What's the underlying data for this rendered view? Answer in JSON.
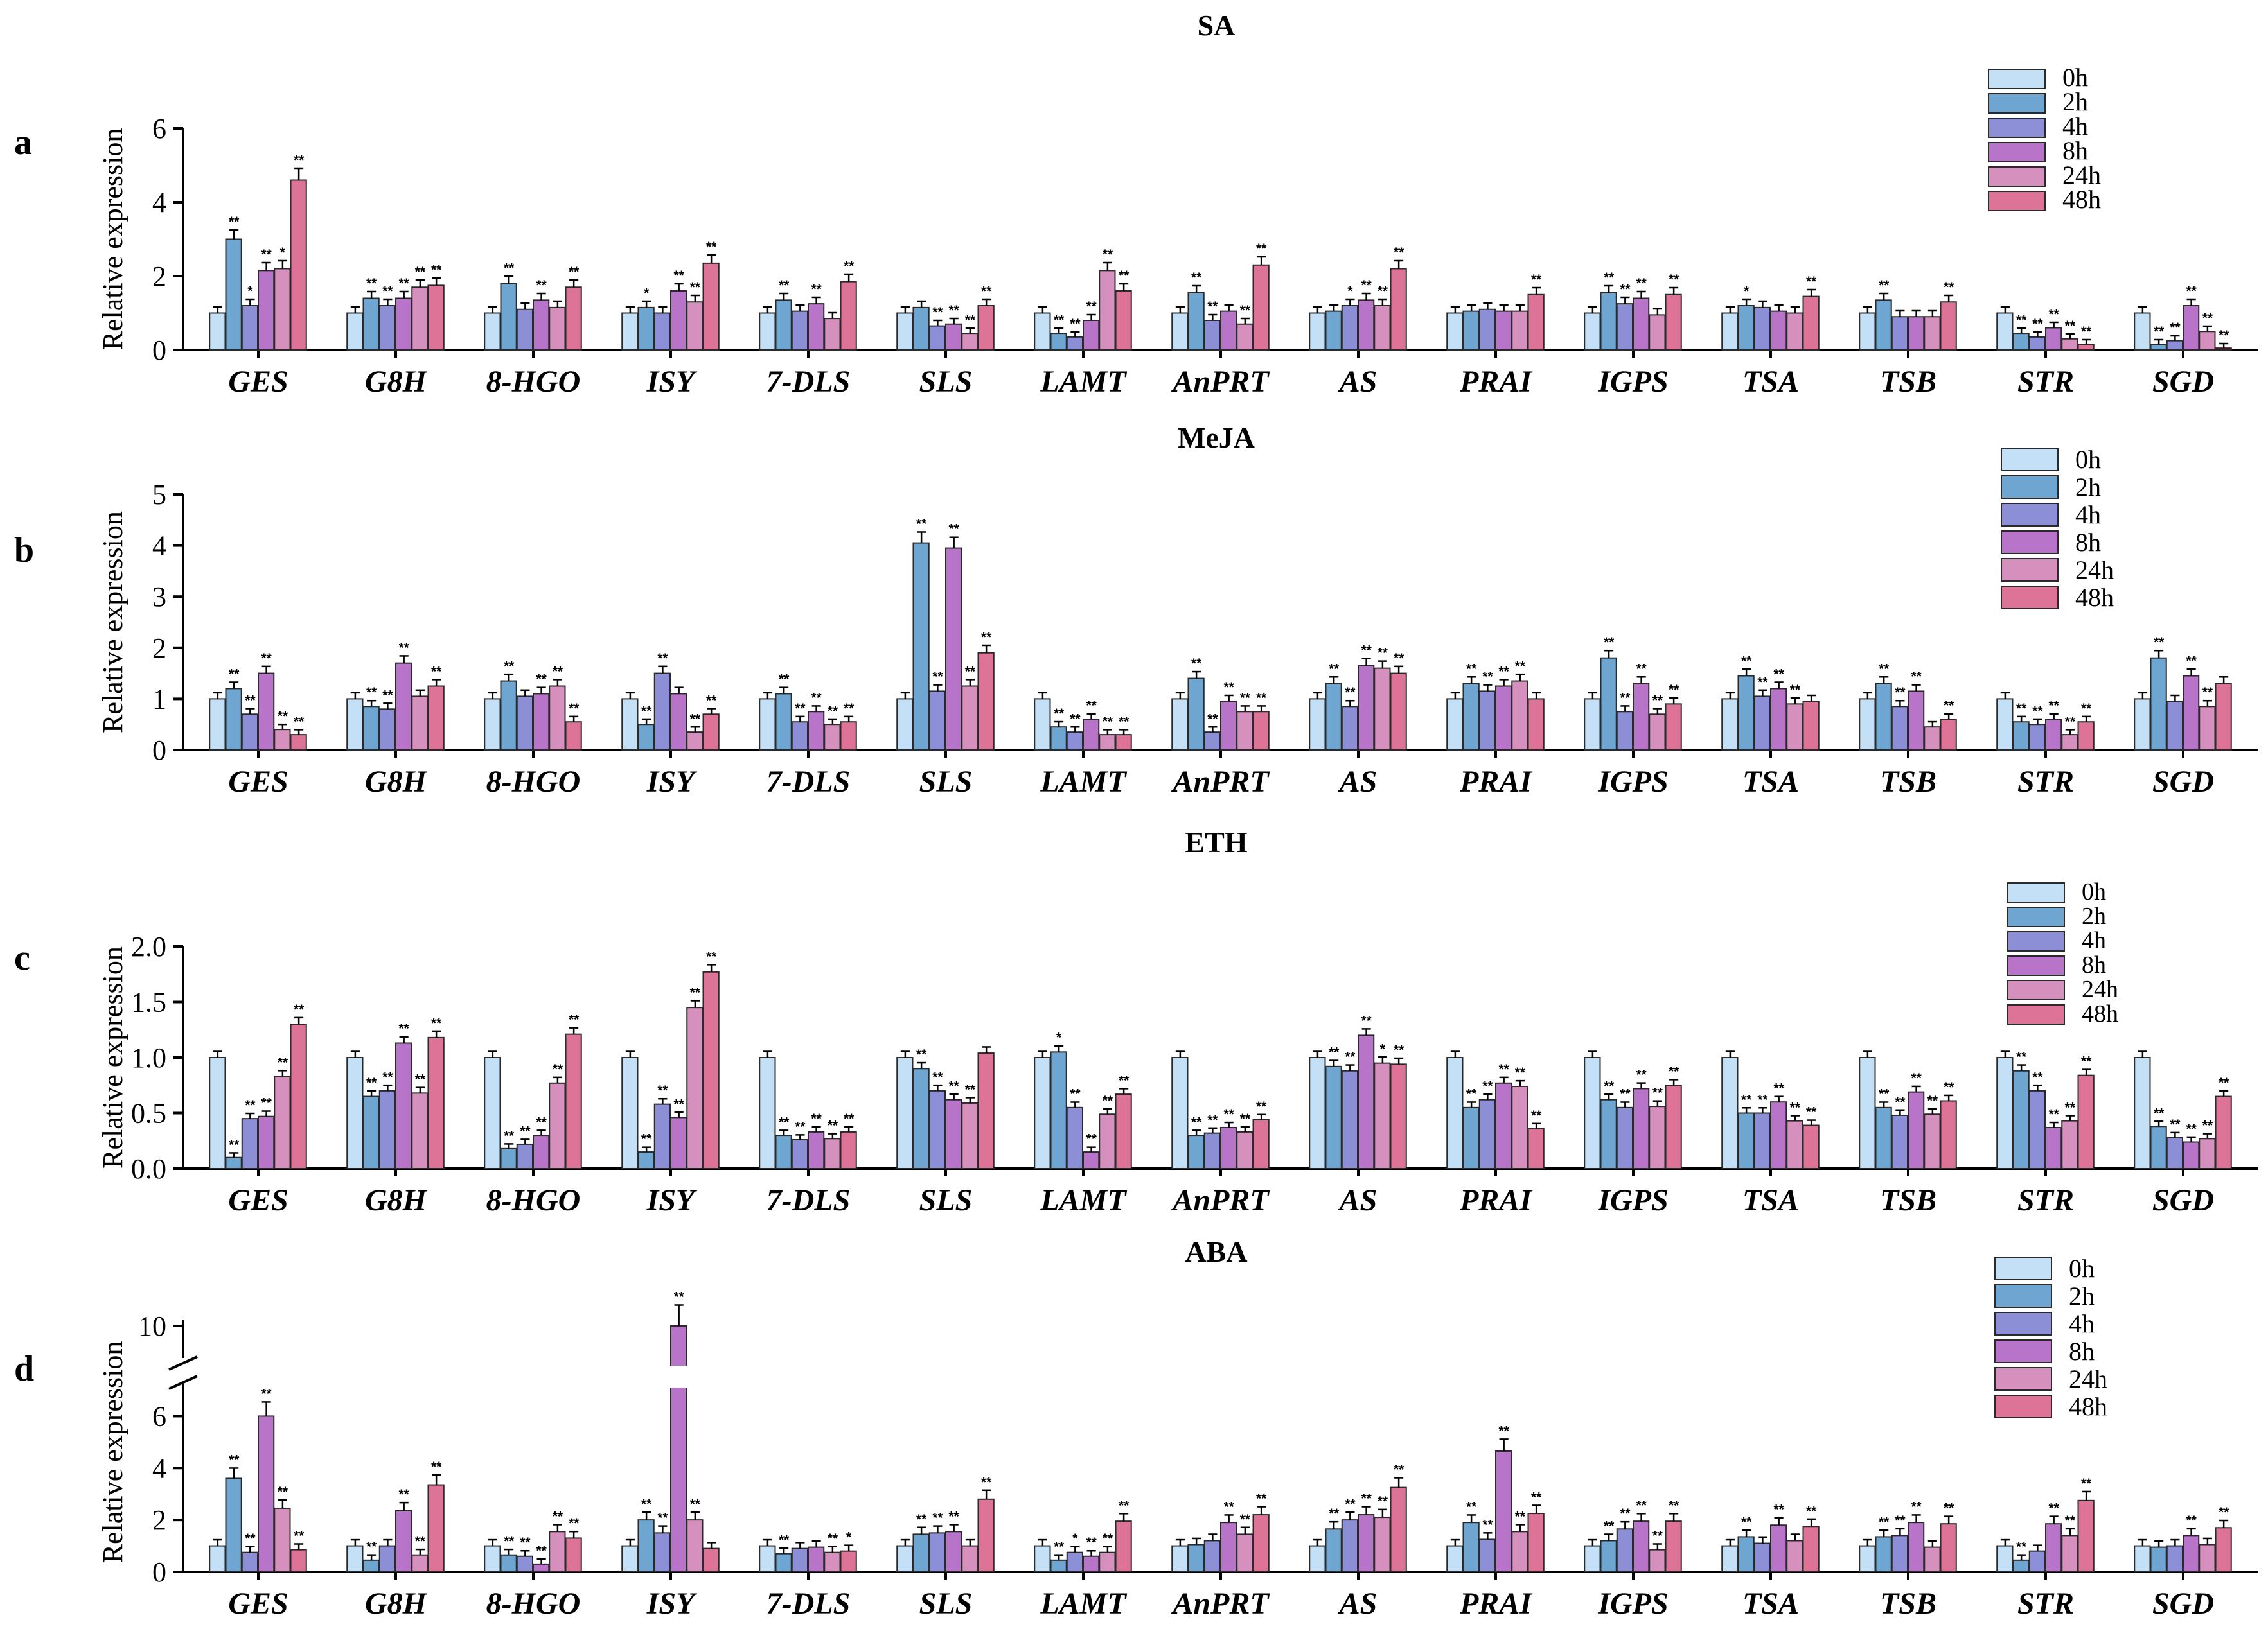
{
  "colors": [
    "#c3e0f6",
    "#6ea6d1",
    "#8c8fd6",
    "#b874c8",
    "#d590bd",
    "#dd7396"
  ],
  "chart_data": [
    {
      "type": "bar",
      "panel": "a",
      "title": "SA",
      "ylabel": "Relative expression",
      "ylim": [
        0,
        6
      ],
      "yticks": [
        "0",
        "2",
        "4",
        "6"
      ],
      "legend": [
        "0h",
        "2h",
        "4h",
        "8h",
        "24h",
        "48h"
      ],
      "categories": [
        "GES",
        "G8H",
        "8-HGO",
        "ISY",
        "7-DLS",
        "SLS",
        "LAMT",
        "AnPRT",
        "AS",
        "PRAI",
        "IGPS",
        "TSA",
        "TSB",
        "STR",
        "SGD"
      ],
      "series": [
        {
          "name": "0h",
          "values": [
            1.0,
            1.0,
            1.0,
            1.0,
            1.0,
            1.0,
            1.0,
            1.0,
            1.0,
            1.0,
            1.0,
            1.0,
            1.0,
            1.0,
            1.0
          ]
        },
        {
          "name": "2h",
          "values": [
            3.0,
            1.4,
            1.8,
            1.15,
            1.35,
            1.15,
            0.45,
            1.55,
            1.05,
            1.05,
            1.55,
            1.2,
            1.35,
            0.45,
            0.15
          ]
        },
        {
          "name": "4h",
          "values": [
            1.2,
            1.2,
            1.1,
            1.0,
            1.05,
            0.65,
            0.35,
            0.8,
            1.2,
            1.1,
            1.25,
            1.15,
            0.9,
            0.35,
            0.25
          ]
        },
        {
          "name": "8h",
          "values": [
            2.15,
            1.4,
            1.35,
            1.6,
            1.25,
            0.7,
            0.8,
            1.05,
            1.35,
            1.05,
            1.4,
            1.05,
            0.9,
            0.6,
            1.2
          ]
        },
        {
          "name": "24h",
          "values": [
            2.2,
            1.7,
            1.15,
            1.3,
            0.85,
            0.45,
            2.15,
            0.7,
            1.2,
            1.05,
            0.95,
            1.0,
            0.9,
            0.3,
            0.5
          ]
        },
        {
          "name": "48h",
          "values": [
            4.6,
            1.75,
            1.7,
            2.35,
            1.85,
            1.2,
            1.6,
            2.3,
            2.2,
            1.5,
            1.5,
            1.45,
            1.3,
            0.15,
            0.05
          ]
        }
      ],
      "significance": [
        [
          "",
          "**",
          "*",
          "**",
          "*",
          "**"
        ],
        [
          "",
          "**",
          "**",
          "**",
          "**",
          "**"
        ],
        [
          "",
          "**",
          "",
          "**",
          "",
          "**"
        ],
        [
          "",
          "*",
          "",
          "**",
          "**",
          "**"
        ],
        [
          "",
          "**",
          "",
          "**",
          "",
          "**"
        ],
        [
          "",
          "",
          "**",
          "**",
          "**",
          "**"
        ],
        [
          "",
          "**",
          "**",
          "**",
          "**",
          "**"
        ],
        [
          "",
          "**",
          "**",
          "",
          "**",
          "**"
        ],
        [
          "",
          "",
          "*",
          "**",
          "**",
          "**"
        ],
        [
          "",
          "",
          "",
          "",
          "",
          "**"
        ],
        [
          "",
          "**",
          "**",
          "**",
          "",
          "**"
        ],
        [
          "",
          "*",
          "",
          "",
          "",
          "**"
        ],
        [
          "",
          "**",
          "",
          "",
          "",
          "**"
        ],
        [
          "",
          "**",
          "**",
          "**",
          "**",
          "**"
        ],
        [
          "",
          "**",
          "**",
          "**",
          "**",
          "**"
        ]
      ]
    },
    {
      "type": "bar",
      "panel": "b",
      "title": "MeJA",
      "ylabel": "Relative expression",
      "ylim": [
        0,
        5
      ],
      "yticks": [
        "0",
        "1",
        "2",
        "3",
        "4",
        "5"
      ],
      "legend": [
        "0h",
        "2h",
        "4h",
        "8h",
        "24h",
        "48h"
      ],
      "categories": [
        "GES",
        "G8H",
        "8-HGO",
        "ISY",
        "7-DLS",
        "SLS",
        "LAMT",
        "AnPRT",
        "AS",
        "PRAI",
        "IGPS",
        "TSA",
        "TSB",
        "STR",
        "SGD"
      ],
      "series": [
        {
          "name": "0h",
          "values": [
            1.0,
            1.0,
            1.0,
            1.0,
            1.0,
            1.0,
            1.0,
            1.0,
            1.0,
            1.0,
            1.0,
            1.0,
            1.0,
            1.0,
            1.0
          ]
        },
        {
          "name": "2h",
          "values": [
            1.2,
            0.85,
            1.35,
            0.5,
            1.1,
            4.05,
            0.45,
            1.4,
            1.3,
            1.3,
            1.8,
            1.45,
            1.3,
            0.55,
            1.8
          ]
        },
        {
          "name": "4h",
          "values": [
            0.7,
            0.8,
            1.05,
            1.5,
            0.55,
            1.15,
            0.35,
            0.35,
            0.85,
            1.15,
            0.75,
            1.05,
            0.85,
            0.5,
            0.95
          ]
        },
        {
          "name": "8h",
          "values": [
            1.5,
            1.7,
            1.1,
            1.1,
            0.75,
            3.95,
            0.6,
            0.95,
            1.65,
            1.25,
            1.3,
            1.2,
            1.15,
            0.6,
            1.45
          ]
        },
        {
          "name": "24h",
          "values": [
            0.4,
            1.05,
            1.25,
            0.35,
            0.5,
            1.25,
            0.3,
            0.75,
            1.6,
            1.35,
            0.7,
            0.9,
            0.45,
            0.3,
            0.85
          ]
        },
        {
          "name": "48h",
          "values": [
            0.3,
            1.25,
            0.55,
            0.7,
            0.55,
            1.9,
            0.3,
            0.75,
            1.5,
            1.0,
            0.9,
            0.95,
            0.6,
            0.55,
            1.3
          ]
        }
      ],
      "significance": [
        [
          "",
          "**",
          "**",
          "**",
          "**",
          "**"
        ],
        [
          "",
          "**",
          "**",
          "**",
          "",
          "**"
        ],
        [
          "",
          "**",
          "",
          "**",
          "**",
          "**"
        ],
        [
          "",
          "**",
          "**",
          "",
          "**",
          "**"
        ],
        [
          "",
          "**",
          "**",
          "**",
          "**",
          "**"
        ],
        [
          "",
          "**",
          "**",
          "**",
          "**",
          "**"
        ],
        [
          "",
          "**",
          "**",
          "**",
          "**",
          "**"
        ],
        [
          "",
          "**",
          "**",
          "**",
          "**",
          "**"
        ],
        [
          "",
          "**",
          "**",
          "**",
          "**",
          "**"
        ],
        [
          "",
          "**",
          "**",
          "**",
          "**",
          ""
        ],
        [
          "",
          "**",
          "**",
          "**",
          "**",
          "**"
        ],
        [
          "",
          "**",
          "**",
          "**",
          "**",
          ""
        ],
        [
          "",
          "**",
          "**",
          "**",
          "",
          "**"
        ],
        [
          "",
          "**",
          "**",
          "**",
          "**",
          "**"
        ],
        [
          "",
          "**",
          "",
          "**",
          "**",
          ""
        ]
      ]
    },
    {
      "type": "bar",
      "panel": "c",
      "title": "ETH",
      "ylabel": "Relative expression",
      "ylim": [
        0,
        2
      ],
      "yticks": [
        "0.0",
        "0.5",
        "1.0",
        "1.5",
        "2.0"
      ],
      "legend": [
        "0h",
        "2h",
        "4h",
        "8h",
        "24h",
        "48h"
      ],
      "categories": [
        "GES",
        "G8H",
        "8-HGO",
        "ISY",
        "7-DLS",
        "SLS",
        "LAMT",
        "AnPRT",
        "AS",
        "PRAI",
        "IGPS",
        "TSA",
        "TSB",
        "STR",
        "SGD"
      ],
      "series": [
        {
          "name": "0h",
          "values": [
            1.0,
            1.0,
            1.0,
            1.0,
            1.0,
            1.0,
            1.0,
            1.0,
            1.0,
            1.0,
            1.0,
            1.0,
            1.0,
            1.0,
            1.0
          ]
        },
        {
          "name": "2h",
          "values": [
            0.1,
            0.65,
            0.18,
            0.15,
            0.3,
            0.9,
            1.05,
            0.3,
            0.92,
            0.55,
            0.62,
            0.5,
            0.55,
            0.88,
            0.38
          ]
        },
        {
          "name": "4h",
          "values": [
            0.45,
            0.7,
            0.22,
            0.58,
            0.26,
            0.7,
            0.55,
            0.32,
            0.88,
            0.62,
            0.55,
            0.5,
            0.48,
            0.7,
            0.28
          ]
        },
        {
          "name": "8h",
          "values": [
            0.47,
            1.13,
            0.3,
            0.46,
            0.33,
            0.62,
            0.15,
            0.37,
            1.2,
            0.77,
            0.72,
            0.6,
            0.69,
            0.37,
            0.24
          ]
        },
        {
          "name": "24h",
          "values": [
            0.83,
            0.68,
            0.77,
            1.45,
            0.27,
            0.59,
            0.49,
            0.33,
            0.95,
            0.74,
            0.56,
            0.43,
            0.49,
            0.43,
            0.27
          ]
        },
        {
          "name": "48h",
          "values": [
            1.3,
            1.18,
            1.21,
            1.77,
            0.33,
            1.04,
            0.67,
            0.44,
            0.94,
            0.36,
            0.75,
            0.39,
            0.61,
            0.84,
            0.65
          ]
        }
      ],
      "significance": [
        [
          "",
          "**",
          "**",
          "**",
          "**",
          "**"
        ],
        [
          "",
          "**",
          "**",
          "**",
          "**",
          "**"
        ],
        [
          "",
          "**",
          "**",
          "**",
          "**",
          "**"
        ],
        [
          "",
          "**",
          "**",
          "**",
          "**",
          "**"
        ],
        [
          "",
          "**",
          "**",
          "**",
          "**",
          "**"
        ],
        [
          "",
          "**",
          "**",
          "**",
          "**",
          ""
        ],
        [
          "",
          "*",
          "**",
          "**",
          "**",
          "**"
        ],
        [
          "",
          "**",
          "**",
          "**",
          "**",
          "**"
        ],
        [
          "",
          "**",
          "**",
          "**",
          "*",
          "**"
        ],
        [
          "",
          "**",
          "**",
          "**",
          "**",
          "**"
        ],
        [
          "",
          "**",
          "**",
          "**",
          "**",
          "**"
        ],
        [
          "",
          "**",
          "**",
          "**",
          "**",
          "**"
        ],
        [
          "",
          "**",
          "**",
          "**",
          "**",
          "**"
        ],
        [
          "",
          "**",
          "**",
          "**",
          "**",
          "**"
        ],
        [
          "",
          "**",
          "**",
          "**",
          "**",
          "**"
        ]
      ]
    },
    {
      "type": "bar",
      "panel": "d",
      "title": "ABA",
      "ylabel": "Relative expression",
      "ylim": [
        0,
        10
      ],
      "axis_break": [
        7,
        9.6
      ],
      "yticks": [
        "0",
        "2",
        "4",
        "6",
        "10"
      ],
      "legend": [
        "0h",
        "2h",
        "4h",
        "8h",
        "24h",
        "48h"
      ],
      "categories": [
        "GES",
        "G8H",
        "8-HGO",
        "ISY",
        "7-DLS",
        "SLS",
        "LAMT",
        "AnPRT",
        "AS",
        "PRAI",
        "IGPS",
        "TSA",
        "TSB",
        "STR",
        "SGD"
      ],
      "series": [
        {
          "name": "0h",
          "values": [
            1.0,
            1.0,
            1.0,
            1.0,
            1.0,
            1.0,
            1.0,
            1.0,
            1.0,
            1.0,
            1.0,
            1.0,
            1.0,
            1.0,
            1.0
          ]
        },
        {
          "name": "2h",
          "values": [
            3.6,
            0.45,
            0.65,
            2.0,
            0.7,
            1.45,
            0.45,
            1.05,
            1.65,
            1.9,
            1.2,
            1.35,
            1.35,
            0.45,
            0.95
          ]
        },
        {
          "name": "4h",
          "values": [
            0.75,
            1.0,
            0.6,
            1.5,
            0.9,
            1.5,
            0.75,
            1.2,
            2.0,
            1.25,
            1.65,
            1.1,
            1.4,
            0.8,
            1.0
          ]
        },
        {
          "name": "8h",
          "values": [
            6.0,
            2.35,
            0.3,
            10.2,
            0.95,
            1.55,
            0.6,
            1.9,
            2.2,
            4.65,
            1.95,
            1.8,
            1.9,
            1.85,
            1.4
          ]
        },
        {
          "name": "24h",
          "values": [
            2.45,
            0.65,
            1.55,
            2.0,
            0.75,
            1.0,
            0.75,
            1.45,
            2.1,
            1.55,
            0.85,
            1.2,
            0.95,
            1.4,
            1.05
          ]
        },
        {
          "name": "48h",
          "values": [
            0.85,
            3.35,
            1.3,
            0.9,
            0.8,
            2.8,
            1.95,
            2.2,
            3.25,
            2.25,
            1.95,
            1.75,
            1.85,
            2.75,
            1.7
          ]
        }
      ],
      "significance": [
        [
          "",
          "**",
          "**",
          "**",
          "**",
          "**"
        ],
        [
          "",
          "**",
          "",
          "**",
          "**",
          "**"
        ],
        [
          "",
          "**",
          "**",
          "**",
          "**",
          "**"
        ],
        [
          "",
          "**",
          "**",
          "**",
          "**",
          ""
        ],
        [
          "",
          "**",
          "",
          "",
          "**",
          "*"
        ],
        [
          "",
          "**",
          "**",
          "**",
          "",
          "**"
        ],
        [
          "",
          "**",
          "*",
          "**",
          "**",
          "**"
        ],
        [
          "",
          "",
          "",
          "**",
          "**",
          "**"
        ],
        [
          "",
          "**",
          "**",
          "**",
          "**",
          "**"
        ],
        [
          "",
          "**",
          "**",
          "**",
          "**",
          "**"
        ],
        [
          "",
          "**",
          "**",
          "**",
          "**",
          "**"
        ],
        [
          "",
          "**",
          "",
          "**",
          "",
          "**"
        ],
        [
          "",
          "**",
          "**",
          "**",
          "",
          "**"
        ],
        [
          "",
          "**",
          "",
          "**",
          "**",
          "**"
        ],
        [
          "",
          "",
          "",
          "**",
          "",
          "**"
        ]
      ]
    }
  ]
}
